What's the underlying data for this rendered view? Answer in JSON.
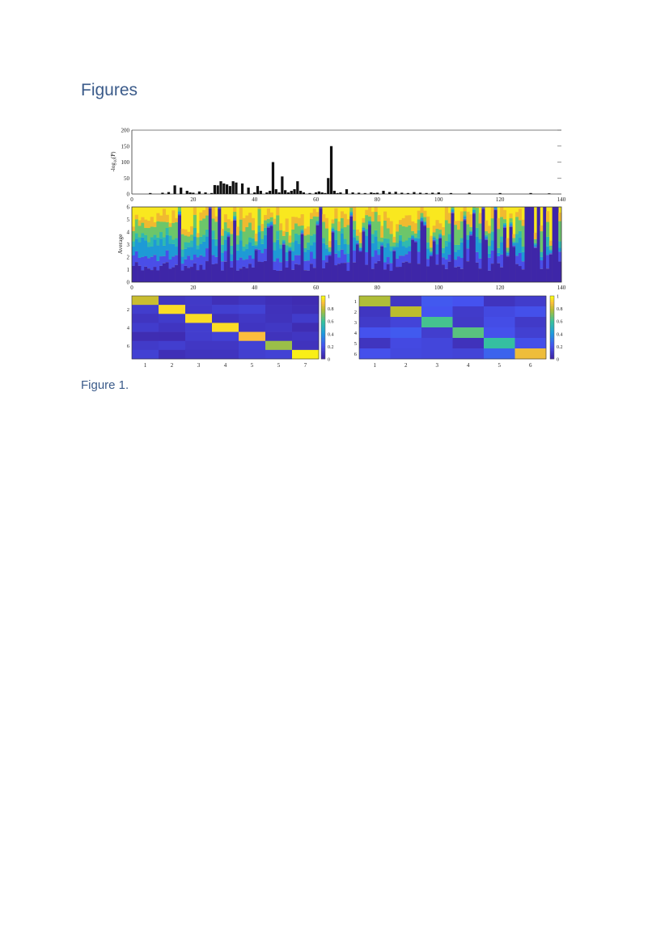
{
  "page": {
    "heading": "Figures",
    "caption": "Figure 1."
  },
  "chart_data": [
    {
      "type": "bar",
      "ylabel": "-log10(P)",
      "ylabel_main": "-log",
      "ylabel_sub": "10",
      "ylabel_tail": "(P)",
      "ylim": [
        0,
        200
      ],
      "yticks": [
        "200",
        "150",
        "100",
        "50",
        "0"
      ],
      "xticks": [
        "0",
        "20",
        "40",
        "60",
        "80",
        "100",
        "120",
        "140"
      ],
      "xlim": [
        0,
        140
      ],
      "x": [
        6,
        10,
        12,
        14,
        16,
        18,
        19,
        20,
        22,
        24,
        26,
        27,
        28,
        29,
        30,
        31,
        32,
        33,
        34,
        36,
        38,
        40,
        41,
        42,
        44,
        45,
        46,
        47,
        48,
        49,
        50,
        51,
        52,
        53,
        54,
        55,
        56,
        58,
        60,
        61,
        62,
        63,
        64,
        65,
        66,
        67,
        68,
        70,
        72,
        74,
        76,
        78,
        79,
        80,
        82,
        84,
        86,
        88,
        90,
        92,
        94,
        96,
        98,
        100,
        104,
        110,
        120,
        130,
        136
      ],
      "values": [
        3,
        4,
        6,
        27,
        20,
        10,
        5,
        4,
        8,
        5,
        3,
        28,
        27,
        40,
        33,
        30,
        25,
        40,
        36,
        33,
        20,
        5,
        25,
        10,
        5,
        10,
        100,
        15,
        5,
        55,
        12,
        5,
        10,
        15,
        40,
        10,
        5,
        3,
        5,
        8,
        5,
        3,
        50,
        150,
        10,
        3,
        5,
        15,
        5,
        4,
        3,
        5,
        3,
        4,
        10,
        6,
        7,
        4,
        3,
        6,
        4,
        3,
        4,
        5,
        3,
        4,
        3,
        3,
        2
      ]
    },
    {
      "type": "area",
      "ylabel": "Average",
      "ylim": [
        0,
        6
      ],
      "yticks": [
        "6",
        "5",
        "4",
        "3",
        "2",
        "1",
        "0"
      ],
      "xticks": [
        "0",
        "20",
        "40",
        "60",
        "80",
        "100",
        "120",
        "140"
      ],
      "xlim": [
        0,
        140
      ],
      "series_colors": [
        "#3e26a8",
        "#4a4ee8",
        "#1e9ad6",
        "#2fb9b0",
        "#6cc66a",
        "#f0ba30",
        "#f9e81f"
      ]
    },
    {
      "type": "heatmap",
      "xticks": [
        "1",
        "2",
        "3",
        "4",
        "5",
        "5",
        "7"
      ],
      "yticks": [
        "2",
        "4",
        "6"
      ],
      "colorbar_ticks": [
        "1",
        "0.8",
        "0.6",
        "0.4",
        "0.2",
        "0"
      ],
      "diagonal": [
        0.82,
        0.95,
        0.95,
        0.95,
        0.9,
        0.75,
        0.98
      ],
      "offdiag": 0.05
    },
    {
      "type": "heatmap",
      "xticks": [
        "1",
        "2",
        "3",
        "4",
        "5",
        "6"
      ],
      "yticks": [
        "1",
        "2",
        "3",
        "4",
        "5",
        "6"
      ],
      "colorbar_ticks": [
        "1",
        "0.8",
        "0.6",
        "0.4",
        "0.2",
        "0"
      ],
      "diagonal": [
        0.78,
        0.8,
        0.62,
        0.65,
        0.58,
        0.88
      ],
      "offdiag": 0.1
    }
  ]
}
